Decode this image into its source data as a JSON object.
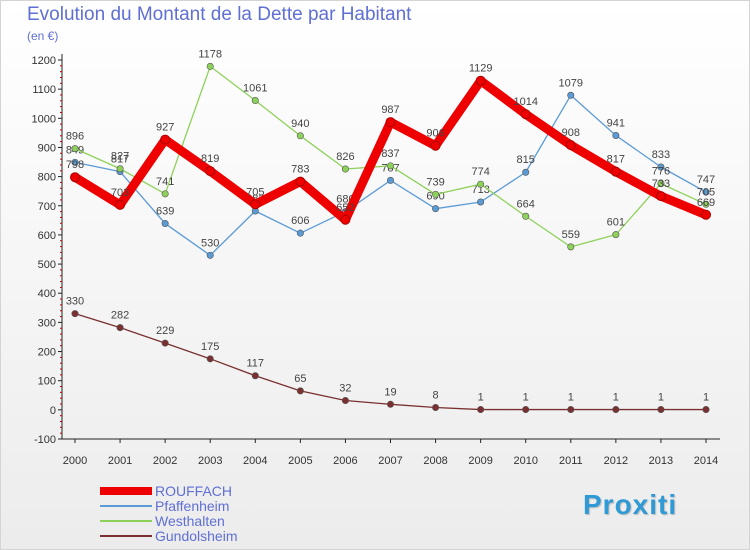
{
  "brand": "Proxiti",
  "chart_data": {
    "type": "line",
    "title": "Evolution du Montant de la Dette par Habitant",
    "unit_label": "(en €)",
    "xlabel": "",
    "ylabel": "",
    "x": [
      "2000",
      "2001",
      "2002",
      "2003",
      "2004",
      "2005",
      "2006",
      "2007",
      "2008",
      "2009",
      "2010",
      "2011",
      "2012",
      "2013",
      "2014"
    ],
    "ylim": [
      -100,
      1200
    ],
    "yticks": [
      -100,
      0,
      100,
      200,
      300,
      400,
      500,
      600,
      700,
      800,
      900,
      1000,
      1100,
      1200
    ],
    "grid": false,
    "legend_position": "bottom-left",
    "series": [
      {
        "name": "Pfaffenheim",
        "color": "#5b9bd5",
        "values": [
          849,
          817,
          639,
          530,
          682,
          606,
          680,
          787,
          690,
          713,
          815,
          1079,
          941,
          833,
          747
        ]
      },
      {
        "name": "Westhalten",
        "color": "#8ed15a",
        "values": [
          896,
          827,
          741,
          1178,
          1061,
          940,
          826,
          837,
          739,
          774,
          664,
          559,
          601,
          776,
          705
        ]
      },
      {
        "name": "Gundolsheim",
        "color": "#7a3030",
        "values": [
          330,
          282,
          229,
          175,
          117,
          65,
          32,
          19,
          8,
          1,
          1,
          1,
          1,
          1,
          1
        ]
      },
      {
        "name": "ROUFFACH",
        "color": "#ee0000",
        "values": [
          798,
          703,
          927,
          819,
          705,
          783,
          652,
          987,
          906,
          1129,
          1014,
          908,
          817,
          733,
          669
        ]
      }
    ]
  }
}
